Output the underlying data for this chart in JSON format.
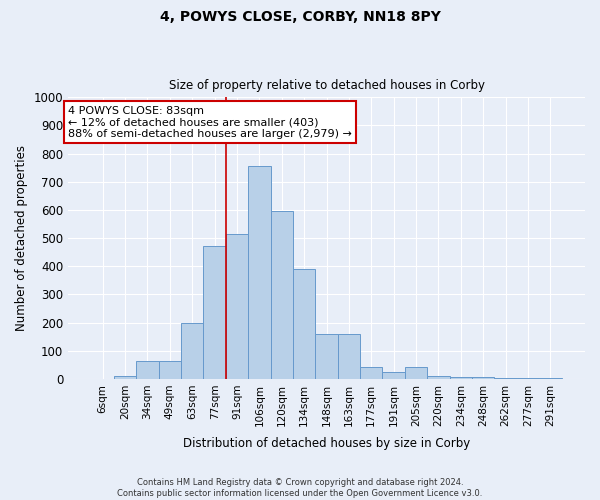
{
  "title_line1": "4, POWYS CLOSE, CORBY, NN18 8PY",
  "title_line2": "Size of property relative to detached houses in Corby",
  "xlabel": "Distribution of detached houses by size in Corby",
  "ylabel": "Number of detached properties",
  "categories": [
    "6sqm",
    "20sqm",
    "34sqm",
    "49sqm",
    "63sqm",
    "77sqm",
    "91sqm",
    "106sqm",
    "120sqm",
    "134sqm",
    "148sqm",
    "163sqm",
    "177sqm",
    "191sqm",
    "205sqm",
    "220sqm",
    "234sqm",
    "248sqm",
    "262sqm",
    "277sqm",
    "291sqm"
  ],
  "values": [
    0,
    12,
    65,
    65,
    197,
    472,
    514,
    757,
    595,
    392,
    160,
    160,
    42,
    24,
    44,
    11,
    7,
    5,
    2,
    2,
    2
  ],
  "bar_color": "#b8d0e8",
  "bar_edge_color": "#6699cc",
  "vline_x": 6,
  "vline_color": "#cc0000",
  "ylim": [
    0,
    1000
  ],
  "yticks": [
    0,
    100,
    200,
    300,
    400,
    500,
    600,
    700,
    800,
    900,
    1000
  ],
  "annotation_text": "4 POWYS CLOSE: 83sqm\n← 12% of detached houses are smaller (403)\n88% of semi-detached houses are larger (2,979) →",
  "annotation_box_color": "#ffffff",
  "annotation_box_edge_color": "#cc0000",
  "background_color": "#e8eef8",
  "grid_color": "#ffffff",
  "footer_line1": "Contains HM Land Registry data © Crown copyright and database right 2024.",
  "footer_line2": "Contains public sector information licensed under the Open Government Licence v3.0."
}
